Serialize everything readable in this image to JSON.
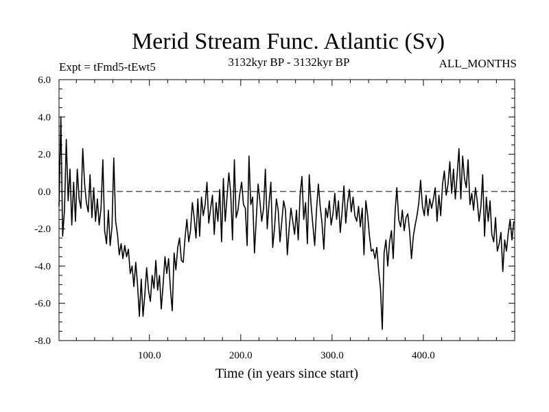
{
  "colors": {
    "line": "#000000",
    "background": "#ffffff",
    "zero_line": "#000000"
  },
  "chart_data": {
    "type": "line",
    "title": "Merid Stream Func. Atlantic (Sv)",
    "subtitle_left": "Expt = tFmd5-tEwt5",
    "subtitle_center": "3132kyr BP - 3132kyr BP",
    "subtitle_right": "ALL_MONTHS",
    "xlabel": "Time (in years since start)",
    "ylabel": "",
    "xlim": [
      1,
      500
    ],
    "ylim": [
      -8,
      6
    ],
    "xticks": [
      100,
      200,
      300,
      400
    ],
    "xtick_labels": [
      "100.0",
      "200.0",
      "300.0",
      "400.0"
    ],
    "yticks": [
      -8,
      -6,
      -4,
      -2,
      0,
      2,
      4,
      6
    ],
    "ytick_labels": [
      "-8.0",
      "-6.0",
      "-4.0",
      "-2.0",
      "0.0",
      "2.0",
      "4.0",
      "6.0"
    ],
    "reference_line": {
      "y": 0,
      "style": "dashed"
    },
    "grid": false,
    "series": [
      {
        "name": "Merid Stream Func. Atlantic",
        "x": [
          1,
          3,
          5,
          7,
          9,
          11,
          13,
          15,
          17,
          19,
          21,
          23,
          25,
          27,
          29,
          31,
          33,
          35,
          37,
          39,
          41,
          43,
          45,
          47,
          49,
          51,
          53,
          55,
          57,
          59,
          61,
          63,
          65,
          67,
          69,
          71,
          73,
          75,
          77,
          79,
          81,
          83,
          85,
          87,
          89,
          91,
          93,
          95,
          97,
          99,
          101,
          103,
          105,
          107,
          109,
          111,
          113,
          115,
          117,
          119,
          121,
          123,
          125,
          127,
          129,
          131,
          133,
          135,
          137,
          139,
          141,
          143,
          145,
          147,
          149,
          151,
          153,
          155,
          157,
          159,
          161,
          163,
          165,
          167,
          169,
          171,
          173,
          175,
          177,
          179,
          181,
          183,
          185,
          187,
          189,
          191,
          193,
          195,
          197,
          199,
          201,
          203,
          205,
          207,
          209,
          211,
          213,
          215,
          217,
          219,
          221,
          223,
          225,
          227,
          229,
          231,
          233,
          235,
          237,
          239,
          241,
          243,
          245,
          247,
          249,
          251,
          253,
          255,
          257,
          259,
          261,
          263,
          265,
          267,
          269,
          271,
          273,
          275,
          277,
          279,
          281,
          283,
          285,
          287,
          289,
          291,
          293,
          295,
          297,
          299,
          301,
          303,
          305,
          307,
          309,
          311,
          313,
          315,
          317,
          319,
          321,
          323,
          325,
          327,
          329,
          331,
          333,
          335,
          337,
          339,
          341,
          343,
          345,
          347,
          349,
          351,
          353,
          355,
          357,
          359,
          361,
          363,
          365,
          367,
          369,
          371,
          373,
          375,
          377,
          379,
          381,
          383,
          385,
          387,
          389,
          391,
          393,
          395,
          397,
          399,
          401,
          403,
          405,
          407,
          409,
          411,
          413,
          415,
          417,
          419,
          421,
          423,
          425,
          427,
          429,
          431,
          433,
          435,
          437,
          439,
          441,
          443,
          445,
          447,
          449,
          451,
          453,
          455,
          457,
          459,
          461,
          463,
          465,
          467,
          469,
          471,
          473,
          475,
          477,
          479,
          481,
          483,
          485,
          487,
          489,
          491,
          493,
          495,
          497,
          499
        ],
        "values": [
          -0.8,
          4.0,
          -2.4,
          -1.0,
          2.8,
          -0.5,
          1.2,
          -1.8,
          0.5,
          -1.6,
          1.2,
          -0.4,
          -0.9,
          2.3,
          0.4,
          -0.6,
          -1.1,
          0.9,
          -1.4,
          0.2,
          -1.6,
          -0.4,
          -1.8,
          -0.9,
          1.7,
          -2.1,
          -2.8,
          -1.0,
          -2.9,
          -1.9,
          1.8,
          -1.6,
          -2.3,
          -3.4,
          -2.8,
          -3.6,
          -2.9,
          -3.5,
          -3.1,
          -4.4,
          -4.0,
          -5.1,
          -3.8,
          -5.0,
          -6.7,
          -4.7,
          -6.7,
          -5.5,
          -4.1,
          -5.3,
          -5.9,
          -4.5,
          -5.2,
          -3.7,
          -5.3,
          -4.5,
          -6.3,
          -5.0,
          -3.5,
          -4.4,
          -3.6,
          -5.2,
          -6.4,
          -3.3,
          -4.2,
          -3.0,
          -2.5,
          -3.7,
          -3.8,
          -2.5,
          -1.5,
          -2.7,
          -2.1,
          -0.6,
          -1.4,
          -2.5,
          -0.4,
          -2.4,
          -0.3,
          -1.3,
          -0.7,
          0.5,
          -1.7,
          -0.9,
          -0.2,
          -2.3,
          -0.6,
          -1.6,
          0.1,
          -2.7,
          0.7,
          -1.6,
          -0.3,
          1.0,
          -0.1,
          -2.6,
          1.7,
          -1.4,
          -1.0,
          -0.1,
          0.5,
          -0.7,
          -0.9,
          -2.9,
          1.9,
          -0.7,
          -0.3,
          -3.3,
          -1.5,
          0.4,
          -0.5,
          -1.6,
          -0.9,
          1.2,
          -2.0,
          -0.6,
          0.5,
          -3.0,
          -2.0,
          -0.4,
          -1.0,
          -2.7,
          -1.6,
          -0.5,
          -1.0,
          -3.4,
          -2.0,
          -0.9,
          -1.6,
          -2.3,
          -1.0,
          -2.6,
          -0.2,
          0.8,
          -1.5,
          -0.6,
          -2.8,
          0.9,
          -0.7,
          -1.8,
          -2.9,
          -1.0,
          0.4,
          -0.8,
          -1.7,
          -3.1,
          -0.9,
          -1.4,
          -0.5,
          -1.8,
          -1.2,
          -0.1,
          -1.5,
          -0.5,
          -2.2,
          -1.1,
          0.3,
          -1.7,
          -0.6,
          0.1,
          -1.1,
          -0.3,
          -1.3,
          -1.6,
          -0.8,
          -1.9,
          -0.9,
          -3.4,
          -0.5,
          -1.3,
          -2.4,
          -3.2,
          -3.1,
          -3.6,
          -3.0,
          -4.2,
          -5.2,
          -7.4,
          -3.3,
          -2.6,
          -4.0,
          -2.7,
          -2.1,
          -3.6,
          -1.1,
          0.2,
          -1.5,
          -1.9,
          -1.0,
          -2.1,
          -1.4,
          -1.2,
          -2.2,
          -3.6,
          -2.4,
          -1.8,
          -1.3,
          -0.6,
          0.6,
          -0.8,
          -1.3,
          -0.2,
          -1.3,
          -0.4,
          -0.9,
          -0.4,
          0.2,
          -1.6,
          -0.2,
          -1.3,
          0.4,
          1.1,
          -0.2,
          0.4,
          1.6,
          -0.1,
          1.2,
          -0.4,
          0.9,
          2.3,
          -0.4,
          1.9,
          0.7,
          0.2,
          1.7,
          -0.7,
          -0.1,
          -1.0,
          0.2,
          -0.5,
          -1.6,
          -0.8,
          0.9,
          -2.4,
          -0.3,
          -1.6,
          -0.5,
          -2.3,
          -2.7,
          -1.4,
          -3.2,
          -2.8,
          -2.2,
          -4.3,
          -2.6,
          -3.2,
          -2.2,
          -1.5,
          -2.6,
          -1.6
        ]
      }
    ]
  }
}
